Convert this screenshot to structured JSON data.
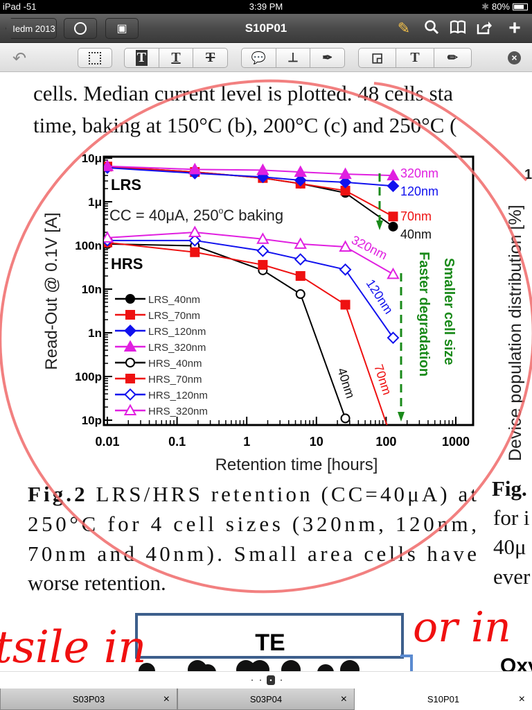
{
  "status_bar": {
    "device": "iPad -51",
    "time": "3:39 PM",
    "battery": "80%",
    "battery_level": 0.8
  },
  "nav": {
    "back_label": "Iedm 2013",
    "title": "S10P01",
    "icons": [
      "clock-icon",
      "grid-icon",
      "highlighter-icon",
      "search-icon",
      "book-icon",
      "share-icon",
      "plus-icon"
    ],
    "highlighter_color": "#f5c24a"
  },
  "toolbar": {
    "icons": [
      "undo-icon",
      "select-rect-icon",
      "text-highlight-icon",
      "text-underline-icon",
      "text-strikethrough-icon",
      "note-icon",
      "stamp-icon",
      "pen-icon",
      "shape-icon",
      "text-icon",
      "pencil-icon",
      "close-icon"
    ],
    "t1": "T",
    "t2": "T",
    "t3": "T",
    "t4": "T"
  },
  "document": {
    "top_lines": [
      "cells. Median current level is plotted. 48 cells sta",
      "time, baking at 150°C (b), 200°C (c) and 250°C ("
    ],
    "caption_bold": "Fig.2",
    "caption_lines": [
      " LRS/HRS retention (CC=40μA) at",
      "250°C for 4 cell sizes (320nm, 120nm,",
      "70nm and 40nm). Small area cells have",
      "worse retention."
    ],
    "right_col": {
      "axis_label": "Device population distribution [%]",
      "tick": "1",
      "fig": "Fig.",
      "lines": [
        "for i",
        "40μ",
        "ever"
      ]
    },
    "bottom_fig": {
      "box_label": "TE",
      "right_text": "Oxyg"
    },
    "handwriting": [
      "tsile in",
      "or in"
    ],
    "annotation_color": "#f06a6a"
  },
  "chart_data": {
    "type": "line",
    "xlabel": "Retention time [hours]",
    "ylabel": "Read-Out @ 0.1V [A]",
    "xscale": "log",
    "yscale": "log",
    "xlim": [
      0.01,
      1000
    ],
    "ylim": [
      1e-11,
      1e-05
    ],
    "xticks": [
      "0.01",
      "0.1",
      "1",
      "10",
      "100",
      "1000"
    ],
    "yticks": [
      "10μ",
      "1μ",
      "100n",
      "10n",
      "1n",
      "100p",
      "10p"
    ],
    "grid": false,
    "legend_placement": "lower-left",
    "annotations": {
      "lrs": "LRS",
      "hrs": "HRS",
      "cc": "CC = 40μA, 250",
      "cc_sup": "o",
      "cc_end": "C baking",
      "l320": "320nm",
      "l120": "120nm",
      "l70": "70nm",
      "l40": "40nm",
      "h320": "320nm",
      "h120": "120nm",
      "h70": "70nm",
      "h40": "40nm",
      "faster": "Faster degradation",
      "smaller": "Smaller cell size",
      "arrow_color": "#1a8a1a"
    },
    "series": [
      {
        "name": "LRS_40nm",
        "color": "#000000",
        "marker": "circle",
        "filled": true,
        "x": [
          0.01,
          0.18,
          1.7,
          5.9,
          26,
          126
        ],
        "y": [
          6.4e-06,
          4.8e-06,
          3.5e-06,
          2.6e-06,
          1.6e-06,
          2.7e-07
        ]
      },
      {
        "name": "LRS_70nm",
        "color": "#ee1111",
        "marker": "square",
        "filled": true,
        "x": [
          0.01,
          0.18,
          1.7,
          5.9,
          26,
          126
        ],
        "y": [
          6.4e-06,
          4.8e-06,
          3.5e-06,
          2.6e-06,
          1.8e-06,
          4.6e-07
        ]
      },
      {
        "name": "LRS_120nm",
        "color": "#1111ee",
        "marker": "diamond",
        "filled": true,
        "x": [
          0.01,
          0.18,
          1.7,
          5.9,
          26,
          126
        ],
        "y": [
          6e-06,
          4.5e-06,
          3.7e-06,
          3.1e-06,
          2.8e-06,
          2.3e-06
        ]
      },
      {
        "name": "LRS_320nm",
        "color": "#e020e0",
        "marker": "triangle",
        "filled": true,
        "x": [
          0.01,
          0.18,
          1.7,
          5.9,
          26,
          126
        ],
        "y": [
          6.5e-06,
          5.5e-06,
          5.3e-06,
          4.8e-06,
          4.3e-06,
          4e-06
        ]
      },
      {
        "name": "HRS_40nm",
        "color": "#000000",
        "marker": "circle",
        "filled": false,
        "x": [
          0.01,
          0.18,
          1.7,
          5.9,
          26
        ],
        "y": [
          1.08e-07,
          9.8e-08,
          2.7e-08,
          7.7e-09,
          1.1e-11
        ]
      },
      {
        "name": "HRS_70nm",
        "color": "#ee1111",
        "marker": "square",
        "filled": true,
        "x": [
          0.01,
          0.18,
          1.7,
          5.9,
          26,
          126
        ],
        "y": [
          1.17e-07,
          7e-08,
          3.6e-08,
          2e-08,
          4.4e-09,
          3e-12
        ]
      },
      {
        "name": "HRS_120nm",
        "color": "#1111ee",
        "marker": "diamond",
        "filled": false,
        "x": [
          0.01,
          0.18,
          1.7,
          5.9,
          26,
          126
        ],
        "y": [
          1.3e-07,
          1.3e-07,
          7.5e-08,
          4.8e-08,
          2.8e-08,
          7.7e-10
        ]
      },
      {
        "name": "HRS_320nm",
        "color": "#e020e0",
        "marker": "triangle",
        "filled": false,
        "x": [
          0.01,
          0.18,
          1.7,
          5.9,
          26,
          126
        ],
        "y": [
          1.5e-07,
          2e-07,
          1.4e-07,
          1.08e-07,
          9.3e-08,
          2.2e-08
        ]
      }
    ]
  },
  "page_indicator": {
    "current": 3
  },
  "tabs": [
    {
      "label": "S03P03",
      "active": false
    },
    {
      "label": "S03P04",
      "active": false
    },
    {
      "label": "S10P01",
      "active": true
    }
  ],
  "tab_close": "×"
}
